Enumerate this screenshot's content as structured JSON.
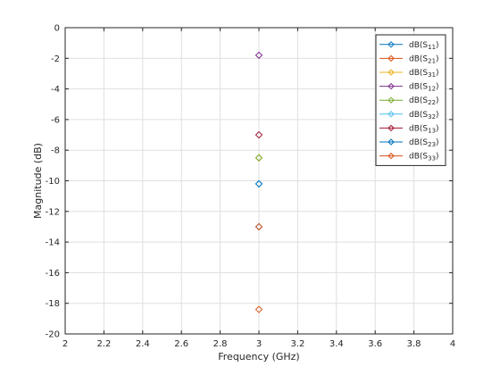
{
  "chart_data": {
    "type": "scatter",
    "xlabel": "Frequency (GHz)",
    "ylabel": "Magnitude (dB)",
    "xlim": [
      2,
      4
    ],
    "ylim": [
      -20,
      0
    ],
    "grid": true,
    "legend_position": "top-right",
    "x_ticks": [
      "2",
      "2.2",
      "2.4",
      "2.6",
      "2.8",
      "3",
      "3.2",
      "3.4",
      "3.6",
      "3.8",
      "4"
    ],
    "y_ticks": [
      "0",
      "-2",
      "-4",
      "-6",
      "-8",
      "-10",
      "-12",
      "-14",
      "-16",
      "-18",
      "-20"
    ],
    "series": [
      {
        "name": "dB(S11)",
        "base": "dB(S",
        "sub": "11",
        "color": "#0072BD",
        "x": [
          3
        ],
        "y": [
          -13.0
        ]
      },
      {
        "name": "dB(S21)",
        "base": "dB(S",
        "sub": "21",
        "color": "#D95319",
        "x": [
          3
        ],
        "y": [
          -18.4
        ]
      },
      {
        "name": "dB(S31)",
        "base": "dB(S",
        "sub": "31",
        "color": "#EDB120",
        "x": [
          3
        ],
        "y": [
          -8.5
        ]
      },
      {
        "name": "dB(S12)",
        "base": "dB(S",
        "sub": "12",
        "color": "#7E2F8E",
        "x": [
          3
        ],
        "y": [
          -1.8
        ]
      },
      {
        "name": "dB(S22)",
        "base": "dB(S",
        "sub": "22",
        "color": "#77AC30",
        "x": [
          3
        ],
        "y": [
          -8.5
        ]
      },
      {
        "name": "dB(S32)",
        "base": "dB(S",
        "sub": "32",
        "color": "#4DBEEE",
        "x": [
          3
        ],
        "y": [
          -10.2
        ]
      },
      {
        "name": "dB(S13)",
        "base": "dB(S",
        "sub": "13",
        "color": "#A2142F",
        "x": [
          3
        ],
        "y": [
          -7.0
        ]
      },
      {
        "name": "dB(S23)",
        "base": "dB(S",
        "sub": "23",
        "color": "#0072BD",
        "x": [
          3
        ],
        "y": [
          -10.2
        ]
      },
      {
        "name": "dB(S33)",
        "base": "dB(S",
        "sub": "33",
        "color": "#D95319",
        "x": [
          3
        ],
        "y": [
          -13.0
        ]
      }
    ]
  }
}
